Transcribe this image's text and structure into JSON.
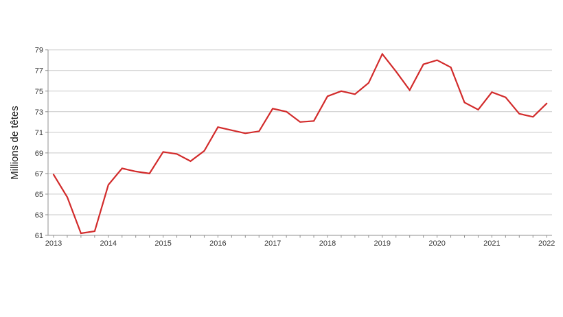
{
  "page": {
    "background": "#ffffff"
  },
  "chart_data": {
    "type": "line",
    "title": "",
    "xlabel": "",
    "ylabel": "Millions de têtes",
    "x_tick_labels": [
      "2013",
      "2014",
      "2015",
      "2016",
      "2017",
      "2018",
      "2019",
      "2020",
      "2021",
      "2022"
    ],
    "points_per_year": 4,
    "frequency": "quarterly",
    "ylim": [
      61,
      79
    ],
    "yticks": [
      61,
      63,
      65,
      67,
      69,
      71,
      73,
      75,
      77,
      79
    ],
    "grid": "horizontal",
    "legend": "none",
    "series": [
      {
        "name": "millions-de-tetes",
        "color": "#d22b2b",
        "values": [
          66.9,
          64.7,
          61.2,
          61.4,
          65.9,
          67.5,
          67.2,
          67.0,
          69.1,
          68.9,
          68.2,
          69.2,
          71.5,
          71.2,
          70.9,
          71.1,
          73.3,
          73.0,
          72.0,
          72.1,
          74.5,
          75.0,
          74.7,
          75.8,
          78.6,
          76.9,
          75.1,
          77.6,
          78.0,
          77.3,
          73.9,
          73.2,
          74.9,
          74.4,
          72.8,
          72.5,
          73.8
        ]
      }
    ],
    "colors": {
      "line": "#d22b2b",
      "gridline": "#c9c9c9",
      "axis": "#8f8f8f",
      "tick_text": "#333333",
      "axis_title_text": "#1a1a1a",
      "background": "#ffffff"
    }
  }
}
